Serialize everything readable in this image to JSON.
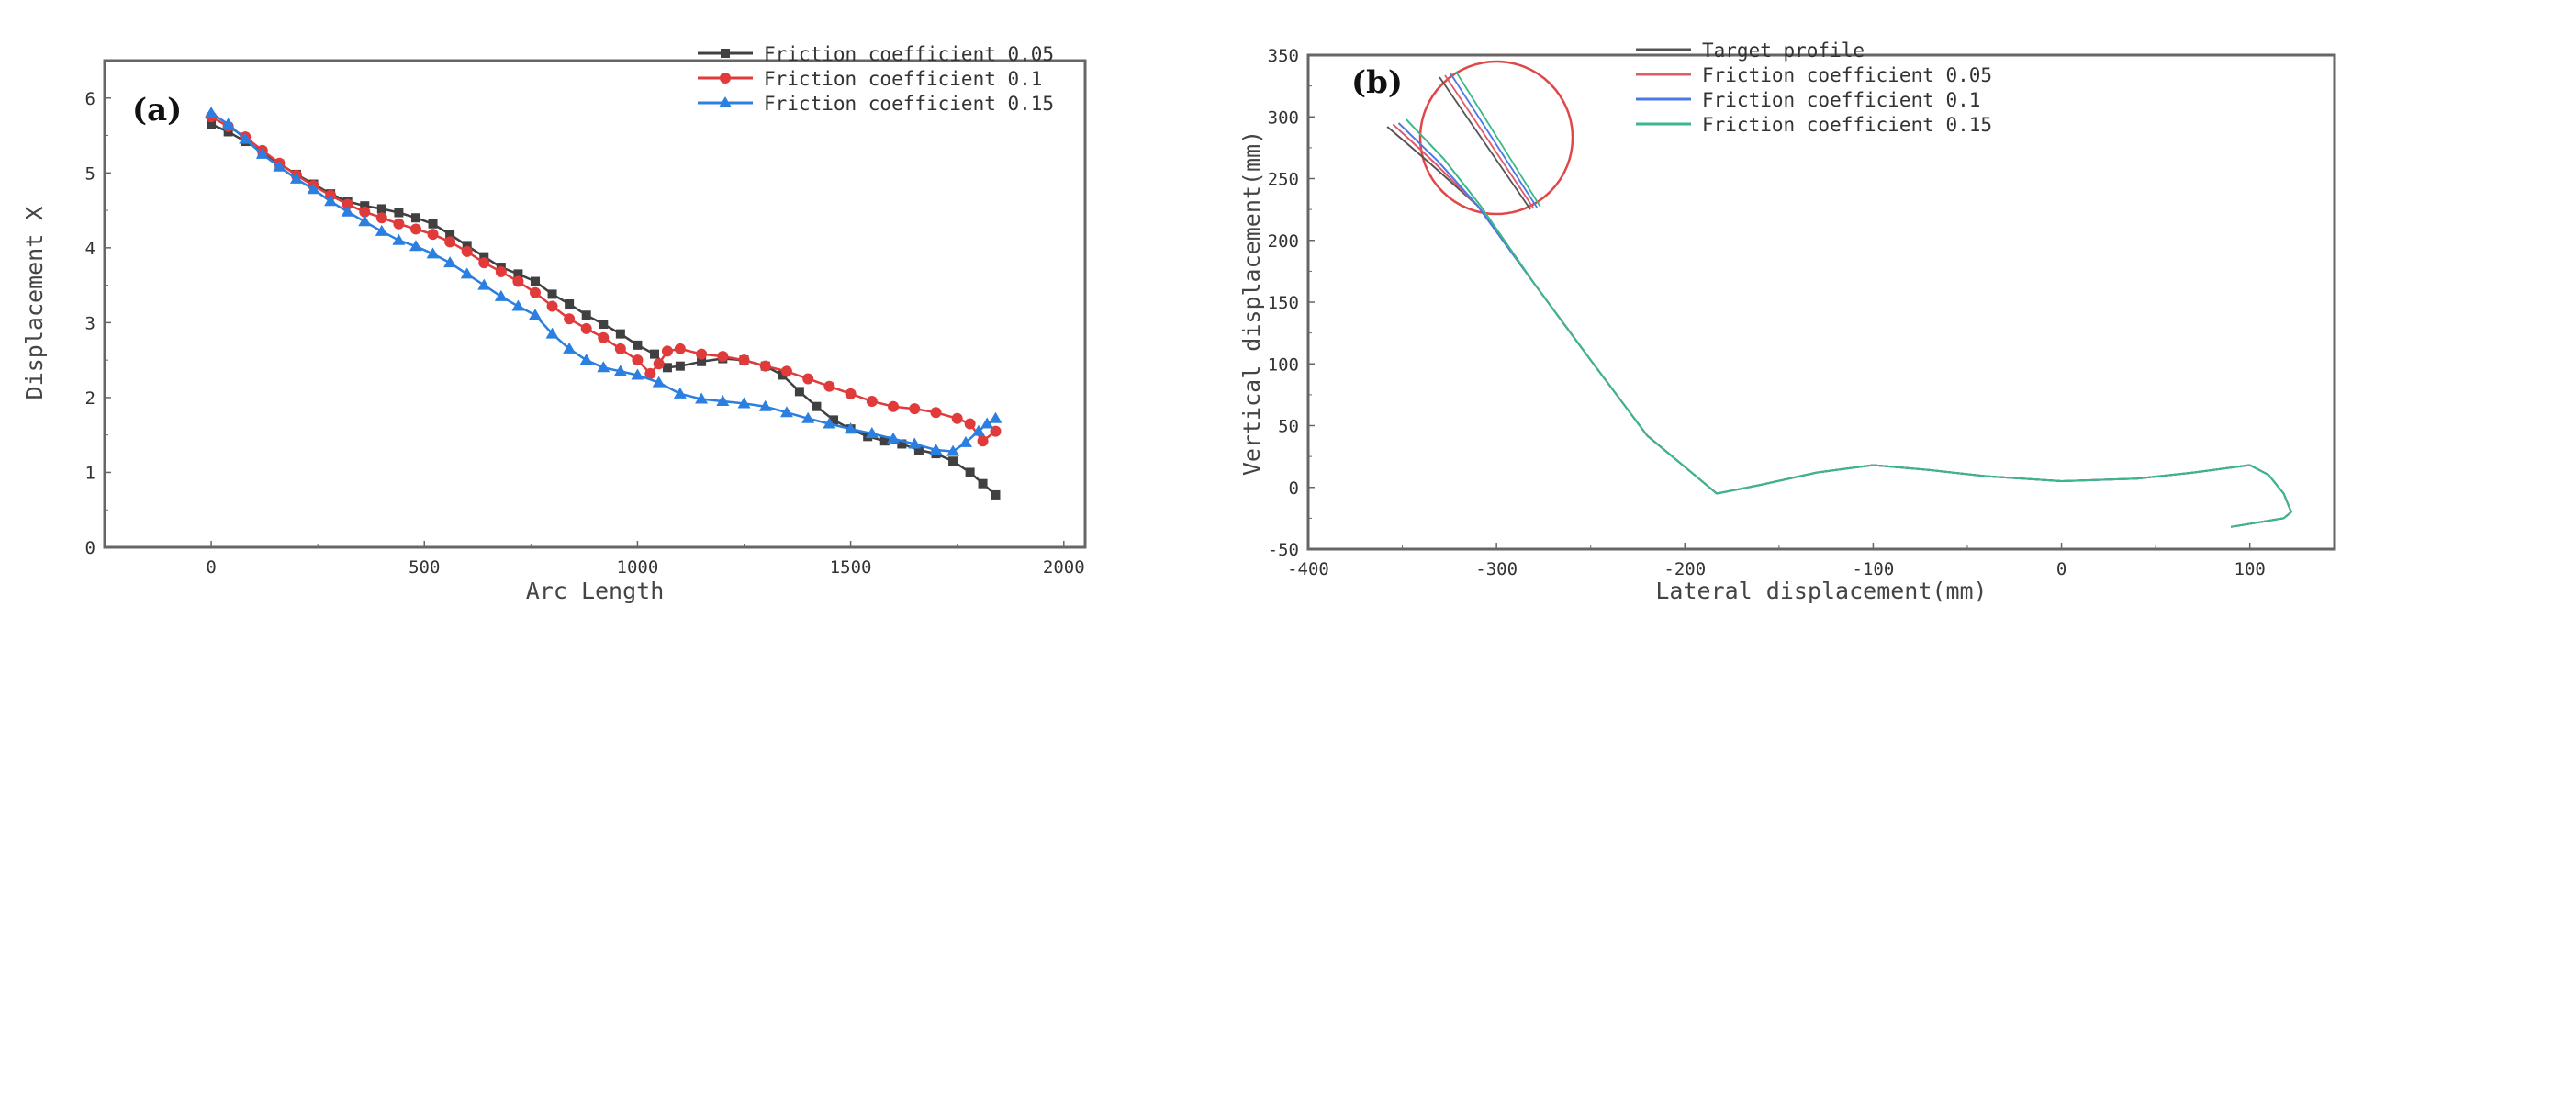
{
  "chart_data": [
    {
      "panel": "(a)",
      "type": "line",
      "title": "",
      "xlabel": "Arc Length",
      "ylabel": "Displacement X",
      "xlim": [
        -250,
        2050
      ],
      "ylim": [
        0,
        6.5
      ],
      "xticks": [
        0,
        500,
        1000,
        1500,
        2000
      ],
      "yticks": [
        0,
        1,
        2,
        3,
        4,
        5,
        6
      ],
      "legend_position": "top-right",
      "series": [
        {
          "name": "Friction coefficient 0.05",
          "color": "#404040",
          "marker": "square",
          "x": [
            0,
            40,
            80,
            120,
            160,
            200,
            240,
            280,
            320,
            360,
            400,
            440,
            480,
            520,
            560,
            600,
            640,
            680,
            720,
            760,
            800,
            840,
            880,
            920,
            960,
            1000,
            1040,
            1070,
            1100,
            1150,
            1200,
            1250,
            1300,
            1340,
            1380,
            1420,
            1460,
            1500,
            1540,
            1580,
            1620,
            1660,
            1700,
            1740,
            1780,
            1810,
            1840
          ],
          "y": [
            5.65,
            5.55,
            5.42,
            5.28,
            5.12,
            4.98,
            4.85,
            4.72,
            4.62,
            4.56,
            4.52,
            4.47,
            4.4,
            4.32,
            4.18,
            4.03,
            3.88,
            3.74,
            3.65,
            3.55,
            3.38,
            3.25,
            3.1,
            2.98,
            2.85,
            2.7,
            2.58,
            2.4,
            2.42,
            2.48,
            2.52,
            2.5,
            2.42,
            2.3,
            2.08,
            1.88,
            1.7,
            1.58,
            1.48,
            1.42,
            1.38,
            1.3,
            1.25,
            1.15,
            1.0,
            0.85,
            0.7
          ]
        },
        {
          "name": "Friction coefficient 0.1",
          "color": "#e03a3a",
          "marker": "circle",
          "x": [
            0,
            40,
            80,
            120,
            160,
            200,
            240,
            280,
            320,
            360,
            400,
            440,
            480,
            520,
            560,
            600,
            640,
            680,
            720,
            760,
            800,
            840,
            880,
            920,
            960,
            1000,
            1030,
            1050,
            1070,
            1100,
            1150,
            1200,
            1250,
            1300,
            1350,
            1400,
            1450,
            1500,
            1550,
            1600,
            1650,
            1700,
            1750,
            1780,
            1810,
            1840
          ],
          "y": [
            5.75,
            5.62,
            5.48,
            5.3,
            5.13,
            4.97,
            4.83,
            4.7,
            4.58,
            4.48,
            4.4,
            4.32,
            4.25,
            4.18,
            4.08,
            3.95,
            3.8,
            3.68,
            3.55,
            3.4,
            3.22,
            3.05,
            2.92,
            2.8,
            2.65,
            2.5,
            2.32,
            2.45,
            2.62,
            2.65,
            2.58,
            2.55,
            2.5,
            2.42,
            2.35,
            2.25,
            2.15,
            2.05,
            1.95,
            1.88,
            1.85,
            1.8,
            1.72,
            1.65,
            1.42,
            1.55
          ]
        },
        {
          "name": "Friction coefficient 0.15",
          "color": "#2a7fe0",
          "marker": "triangle",
          "x": [
            0,
            40,
            80,
            120,
            160,
            200,
            240,
            280,
            320,
            360,
            400,
            440,
            480,
            520,
            560,
            600,
            640,
            680,
            720,
            760,
            800,
            840,
            880,
            920,
            960,
            1000,
            1050,
            1100,
            1150,
            1200,
            1250,
            1300,
            1350,
            1400,
            1450,
            1500,
            1550,
            1600,
            1650,
            1700,
            1740,
            1770,
            1800,
            1820,
            1840
          ],
          "y": [
            5.8,
            5.65,
            5.45,
            5.25,
            5.08,
            4.92,
            4.78,
            4.62,
            4.48,
            4.35,
            4.22,
            4.1,
            4.02,
            3.92,
            3.8,
            3.65,
            3.5,
            3.35,
            3.22,
            3.1,
            2.85,
            2.65,
            2.5,
            2.4,
            2.35,
            2.3,
            2.2,
            2.05,
            1.98,
            1.95,
            1.92,
            1.88,
            1.8,
            1.72,
            1.65,
            1.58,
            1.52,
            1.45,
            1.38,
            1.3,
            1.28,
            1.4,
            1.55,
            1.65,
            1.72
          ]
        }
      ]
    },
    {
      "panel": "(b)",
      "type": "line",
      "title": "",
      "xlabel": "Lateral displacement(mm)",
      "ylabel": "Vertical displacement(mm)",
      "xlim": [
        -400,
        145
      ],
      "ylim": [
        -50,
        350
      ],
      "xticks": [
        -400,
        -300,
        -200,
        -100,
        0,
        100
      ],
      "yticks": [
        -50,
        0,
        50,
        100,
        150,
        200,
        250,
        300,
        350
      ],
      "legend_position": "top-right",
      "annotation": "red circle zoom inset of the upper-left curve tips",
      "series": [
        {
          "name": "Target profile",
          "color": "#555555",
          "x": [
            -358,
            -335,
            -310,
            -280,
            -250,
            -220,
            -183,
            -160,
            -130,
            -100,
            -70,
            -40,
            0,
            40,
            70,
            100,
            110,
            118,
            122,
            118,
            90
          ],
          "y": [
            292,
            262,
            228,
            165,
            103,
            42,
            -5,
            2,
            12,
            18,
            14,
            9,
            5,
            7,
            12,
            18,
            10,
            -5,
            -20,
            -25,
            -32
          ]
        },
        {
          "name": "Friction coefficient 0.05",
          "color": "#e05a6a",
          "x": [
            -355,
            -333,
            -310,
            -280,
            -250,
            -220,
            -183,
            -160,
            -130,
            -100,
            -70,
            -40,
            0,
            40,
            70,
            100,
            110,
            118,
            122,
            118,
            90
          ],
          "y": [
            294,
            263,
            228,
            165,
            103,
            42,
            -5,
            2,
            12,
            18,
            14,
            9,
            5,
            7,
            12,
            18,
            10,
            -5,
            -20,
            -25,
            -32
          ]
        },
        {
          "name": "Friction coefficient 0.1",
          "color": "#4a78e8",
          "x": [
            -352,
            -331,
            -310,
            -280,
            -250,
            -220,
            -183,
            -160,
            -130,
            -100,
            -70,
            -40,
            0,
            40,
            70,
            100,
            110,
            118,
            122,
            118,
            90
          ],
          "y": [
            295,
            264,
            228,
            165,
            103,
            42,
            -5,
            2,
            12,
            18,
            14,
            9,
            5,
            7,
            12,
            18,
            10,
            -5,
            -20,
            -25,
            -32
          ]
        },
        {
          "name": "Friction coefficient 0.15",
          "color": "#3ab88a",
          "x": [
            -348,
            -328,
            -309,
            -280,
            -250,
            -220,
            -183,
            -160,
            -130,
            -100,
            -70,
            -40,
            0,
            40,
            70,
            100,
            110,
            118,
            122,
            118,
            90
          ],
          "y": [
            298,
            266,
            229,
            165,
            103,
            42,
            -5,
            2,
            12,
            18,
            14,
            9,
            5,
            7,
            12,
            18,
            10,
            -5,
            -20,
            -25,
            -32
          ]
        }
      ]
    }
  ]
}
